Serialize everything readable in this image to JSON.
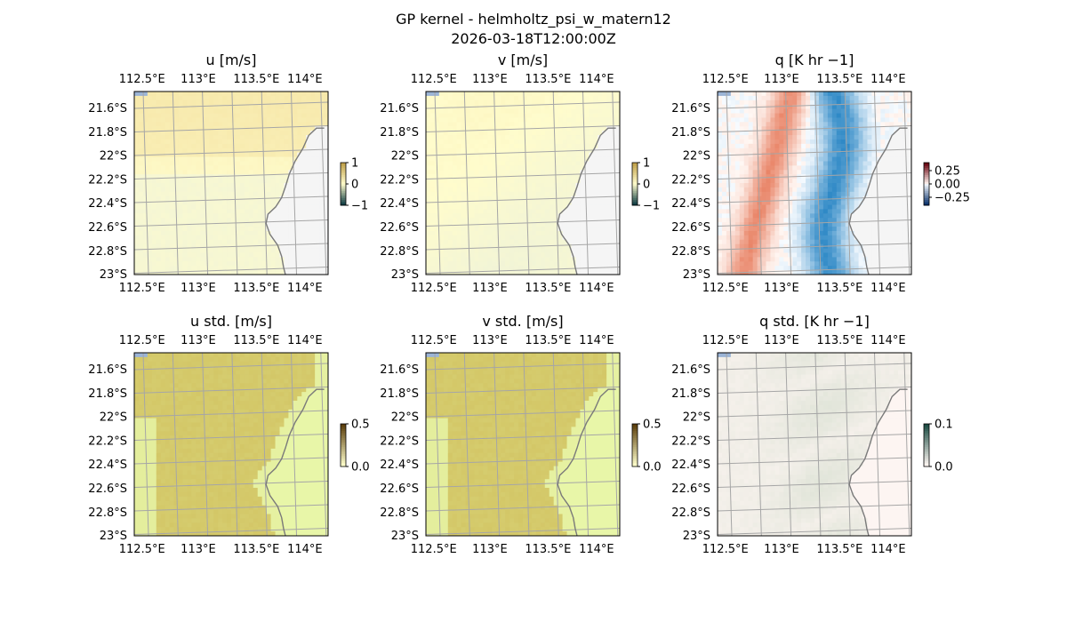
{
  "figure": {
    "title": "GP kernel - helmholtz_psi_w_matern12",
    "subtitle": "2026-03-18T12:00:00Z"
  },
  "colors": {
    "ocean": "#9bb4d6",
    "land": "#f5f5f5",
    "grid": "#a6a6a6",
    "coast": "#7a7a7a",
    "u_low": "#fffccc",
    "u_mid": "#e3ece2",
    "u_high": "#f2dd98",
    "warm": "#e77b5c",
    "cool": "#2f89c6",
    "std_low": "#e8f6a8",
    "std_high": "#d2c463",
    "qstd_low": "#fdf5f2",
    "qstd_high": "#c9d7c4"
  },
  "chart_data": [
    {
      "type": "heatmap",
      "title": "u [m/s]",
      "field": "u",
      "x_ticks": [
        "112.5°E",
        "113°E",
        "113.5°E",
        "114°E"
      ],
      "y_ticks": [
        "21.6°S",
        "21.8°S",
        "22°S",
        "22.2°S",
        "22.4°S",
        "22.6°S",
        "22.8°S",
        "23°S"
      ],
      "colorbar": {
        "ticks": [
          "1",
          "0",
          "−1"
        ],
        "range": [
          -1,
          1
        ]
      }
    },
    {
      "type": "heatmap",
      "title": "v [m/s]",
      "field": "v",
      "x_ticks": [
        "112.5°E",
        "113°E",
        "113.5°E",
        "114°E"
      ],
      "y_ticks": [
        "21.6°S",
        "21.8°S",
        "22°S",
        "22.2°S",
        "22.4°S",
        "22.6°S",
        "22.8°S",
        "23°S"
      ],
      "colorbar": {
        "ticks": [
          "1",
          "0",
          "−1"
        ],
        "range": [
          -1,
          1
        ]
      }
    },
    {
      "type": "heatmap",
      "title": "q [K hr −1]",
      "field": "q",
      "x_ticks": [
        "112.5°E",
        "113°E",
        "113.5°E",
        "114°E"
      ],
      "y_ticks": [
        "21.6°S",
        "21.8°S",
        "22°S",
        "22.2°S",
        "22.4°S",
        "22.6°S",
        "22.8°S",
        "23°S"
      ],
      "colorbar": {
        "ticks": [
          "0.25",
          "0.00",
          "−0.25"
        ],
        "range": [
          -0.35,
          0.35
        ]
      }
    },
    {
      "type": "heatmap",
      "title": "u std. [m/s]",
      "field": "ustd",
      "x_ticks": [
        "112.5°E",
        "113°E",
        "113.5°E",
        "114°E"
      ],
      "y_ticks": [
        "21.6°S",
        "21.8°S",
        "22°S",
        "22.2°S",
        "22.4°S",
        "22.6°S",
        "22.8°S",
        "23°S"
      ],
      "colorbar": {
        "ticks": [
          "0.5",
          "0.0"
        ],
        "range": [
          0,
          0.5
        ]
      }
    },
    {
      "type": "heatmap",
      "title": "v std. [m/s]",
      "field": "vstd",
      "x_ticks": [
        "112.5°E",
        "113°E",
        "113.5°E",
        "114°E"
      ],
      "y_ticks": [
        "21.6°S",
        "21.8°S",
        "22°S",
        "22.2°S",
        "22.4°S",
        "22.6°S",
        "22.8°S",
        "23°S"
      ],
      "colorbar": {
        "ticks": [
          "0.5",
          "0.0"
        ],
        "range": [
          0,
          0.5
        ]
      }
    },
    {
      "type": "heatmap",
      "title": "q std. [K hr −1]",
      "field": "qstd",
      "x_ticks": [
        "112.5°E",
        "113°E",
        "113.5°E",
        "114°E"
      ],
      "y_ticks": [
        "21.6°S",
        "21.8°S",
        "22°S",
        "22.2°S",
        "22.4°S",
        "22.6°S",
        "22.8°S",
        "23°S"
      ],
      "colorbar": {
        "ticks": [
          "0.1",
          "0.0"
        ],
        "range": [
          0,
          0.1
        ]
      }
    }
  ]
}
